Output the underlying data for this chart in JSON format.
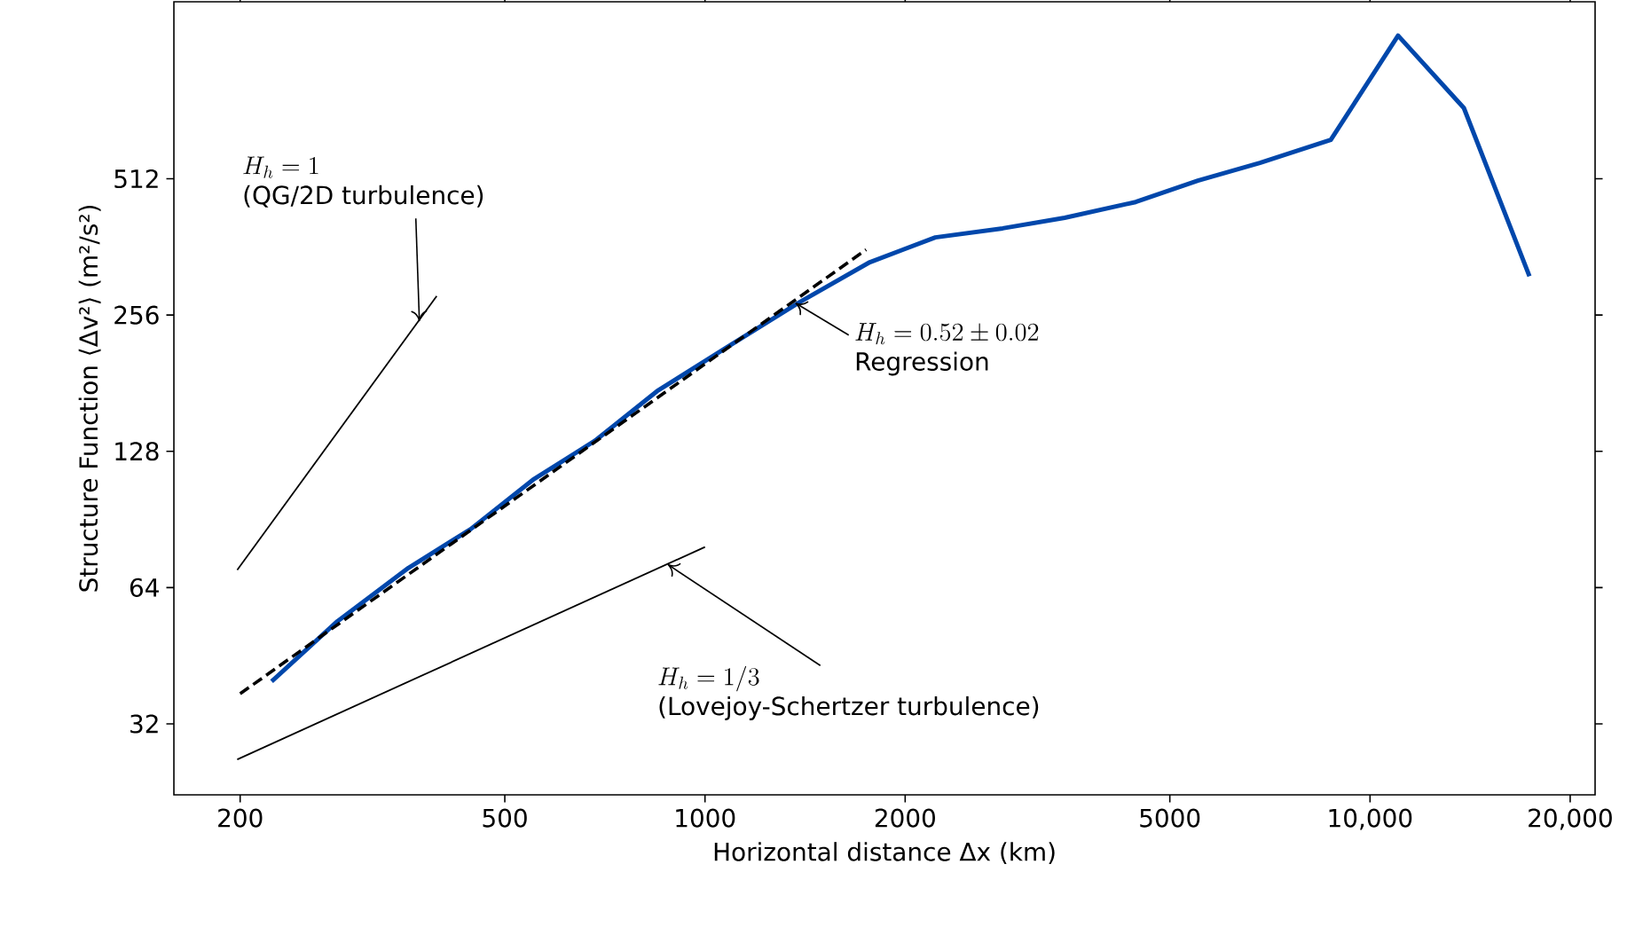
{
  "chart_data": {
    "type": "line",
    "xlabel": "Horizontal distance Δx (km)",
    "ylabel": "Structure Function ⟨Δv²⟩ (m²/s²)",
    "log": "xy",
    "xlim": [
      159,
      21800
    ],
    "ylim": [
      22.3,
      1260
    ],
    "xticks": [
      200,
      500,
      1000,
      2000,
      5000,
      {
        "value": 10000,
        "label": "10,000"
      },
      {
        "value": 20000,
        "label": "20,000"
      }
    ],
    "yticks": [
      32,
      64,
      128,
      256,
      512
    ],
    "series": [
      {
        "color": "#0047ab",
        "line_style": "solid",
        "x": [
          223,
          280,
          358,
          444,
          551,
          683,
          847,
          1082,
          1384,
          1770,
          2220,
          2803,
          3475,
          4443,
          5510,
          6830,
          8730,
          11020,
          13840,
          17370
        ],
        "values": [
          39.7,
          53.9,
          70.7,
          86.1,
          110.7,
          135,
          173.8,
          217.8,
          272.7,
          335,
          380,
          398,
          420,
          455,
          507,
          555,
          624,
          1061,
          734,
          312
        ]
      },
      {
        "color": "#000000",
        "line_style": "dashed",
        "x": [
          200,
          1747
        ],
        "values": [
          37.3,
          357
        ]
      },
      {
        "color": "#000000",
        "line_style": "solid",
        "x": [
          198,
          395
        ],
        "values": [
          70,
          282
        ]
      },
      {
        "color": "#000000",
        "line_style": "solid",
        "x": [
          198,
          1000
        ],
        "values": [
          26.7,
          78.7
        ]
      }
    ],
    "annotations": [
      "H_h = 1",
      {
        "text": "(QG/2D turbulence)",
        "x": 372,
        "y": 248
      },
      {
        "text": "H_h = 0.52 \\pm 0.02",
        "x": 1368,
        "y": 272
      },
      "Regression",
      "H_h = 1/3",
      {
        "text": "(Lovejoy-Schertzer turbulence)",
        "x": 879,
        "y": 72
      }
    ]
  }
}
